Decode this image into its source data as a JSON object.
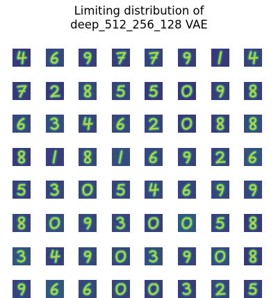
{
  "figure": {
    "title_lines": [
      "Limiting distribution of",
      "deep_512_256_128 VAE"
    ],
    "grid": {
      "rows": 8,
      "cols": 8
    },
    "colormap": "viridis",
    "colors": {
      "background": "#ffffff",
      "low": "#3b2a7a",
      "mid": "#2a8c8a",
      "high": "#c8e830"
    },
    "samples": [
      [
        "4",
        "6",
        "9",
        "7",
        "7",
        "9",
        "1",
        "4"
      ],
      [
        "7",
        "2",
        "8",
        "5",
        "5",
        "0",
        "9",
        "8"
      ],
      [
        "6",
        "3",
        "4",
        "6",
        "2",
        "0",
        "8",
        "8"
      ],
      [
        "8",
        "1",
        "8",
        "1",
        "6",
        "9",
        "2",
        "6"
      ],
      [
        "5",
        "3",
        "0",
        "5",
        "4",
        "6",
        "9",
        "9"
      ],
      [
        "8",
        "0",
        "9",
        "3",
        "0",
        "0",
        "5",
        "8"
      ],
      [
        "3",
        "4",
        "9",
        "0",
        "3",
        "9",
        "0",
        "8"
      ],
      [
        "9",
        "6",
        "6",
        "0",
        "0",
        "3",
        "2",
        "5"
      ]
    ],
    "tile_shade": [
      [
        0.15,
        0.3,
        0.2,
        0.2,
        0.25,
        0.2,
        0.15,
        0.25
      ],
      [
        0.15,
        0.15,
        0.3,
        0.25,
        0.15,
        0.1,
        0.2,
        0.2
      ],
      [
        0.3,
        0.35,
        0.25,
        0.3,
        0.25,
        0.15,
        0.2,
        0.35
      ],
      [
        0.15,
        0.2,
        0.3,
        0.35,
        0.3,
        0.25,
        0.25,
        0.4
      ],
      [
        0.2,
        0.25,
        0.3,
        0.25,
        0.3,
        0.25,
        0.3,
        0.3
      ],
      [
        0.25,
        0.35,
        0.3,
        0.25,
        0.2,
        0.45,
        0.25,
        0.15
      ],
      [
        0.4,
        0.2,
        0.3,
        0.3,
        0.35,
        0.25,
        0.35,
        0.15
      ],
      [
        0.25,
        0.45,
        0.3,
        0.25,
        0.2,
        0.2,
        0.3,
        0.2
      ]
    ]
  }
}
